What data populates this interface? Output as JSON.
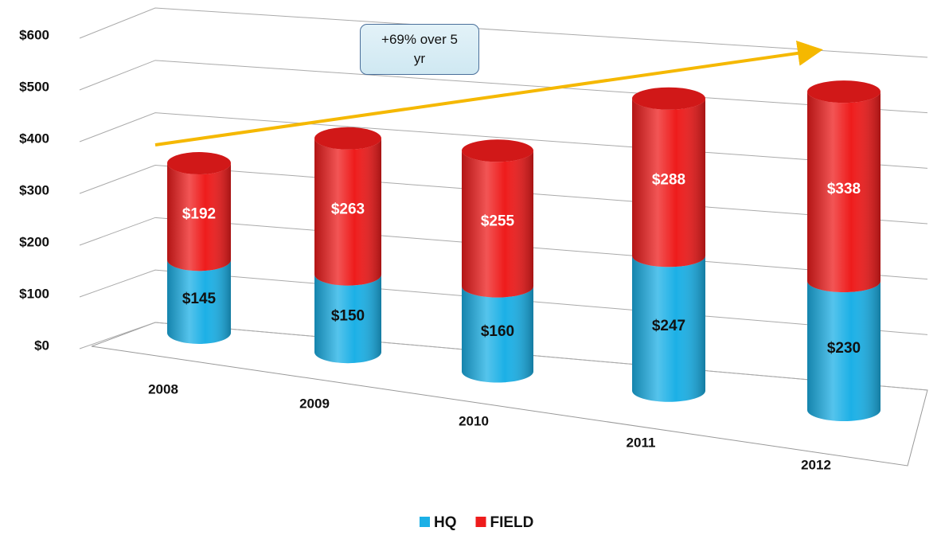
{
  "chart_data": {
    "type": "bar3d",
    "stacked": true,
    "categories": [
      "2008",
      "2009",
      "2010",
      "2011",
      "2012"
    ],
    "series": [
      {
        "name": "HQ",
        "color": "#1cb0e6",
        "values": [
          145,
          150,
          160,
          247,
          230
        ],
        "value_labels": [
          "$145",
          "$150",
          "$160",
          "$247",
          "$230"
        ]
      },
      {
        "name": "FIELD",
        "color": "#ee1c1c",
        "values": [
          192,
          263,
          255,
          288,
          338
        ],
        "value_labels": [
          "$192",
          "$263",
          "$255",
          "$288",
          "$338"
        ]
      }
    ],
    "ylim": [
      0,
      600
    ],
    "yticks": [
      {
        "value": 0,
        "label": "$0"
      },
      {
        "value": 100,
        "label": "$100"
      },
      {
        "value": 200,
        "label": "$200"
      },
      {
        "value": 300,
        "label": "$300"
      },
      {
        "value": 400,
        "label": "$400"
      },
      {
        "value": 500,
        "label": "$500"
      },
      {
        "value": 600,
        "label": "$600"
      }
    ],
    "grid": true,
    "legend": "bottom",
    "annotation": "+69% over 5 yr",
    "trend_color": "#f5b800"
  }
}
